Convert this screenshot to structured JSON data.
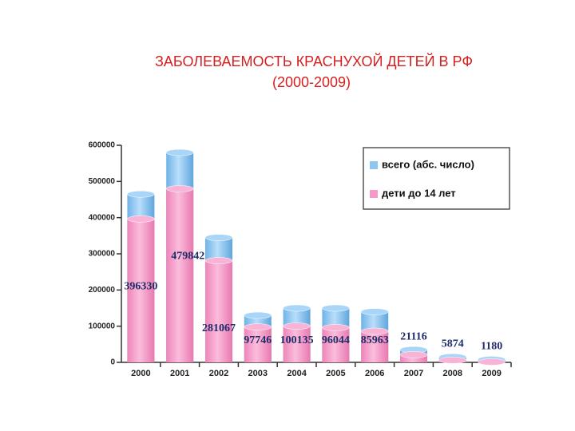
{
  "chart_data": {
    "type": "bar",
    "overlap": true,
    "title": "ЗАБОЛЕВАЕМОСТЬ КРАСНУХОЙ ДЕТЕЙ В РФ",
    "subtitle": "(2000-2009)",
    "categories": [
      "2000",
      "2001",
      "2002",
      "2003",
      "2004",
      "2005",
      "2006",
      "2007",
      "2008",
      "2009"
    ],
    "series": [
      {
        "name": "всего (абс. число)",
        "color": "#8ec6f0",
        "values": [
          465000,
          580000,
          345000,
          130000,
          150000,
          150000,
          140000,
          35000,
          15000,
          8000
        ]
      },
      {
        "name": "дети до 14 лет",
        "color": "#f59ac8",
        "values": [
          396330,
          479842,
          281067,
          97746,
          100135,
          96044,
          85963,
          21116,
          5874,
          1180
        ]
      }
    ],
    "label_series": 1,
    "ylim": [
      0,
      600000
    ],
    "yticks": [
      0,
      100000,
      200000,
      300000,
      400000,
      500000,
      600000
    ],
    "legend": "top-right"
  }
}
